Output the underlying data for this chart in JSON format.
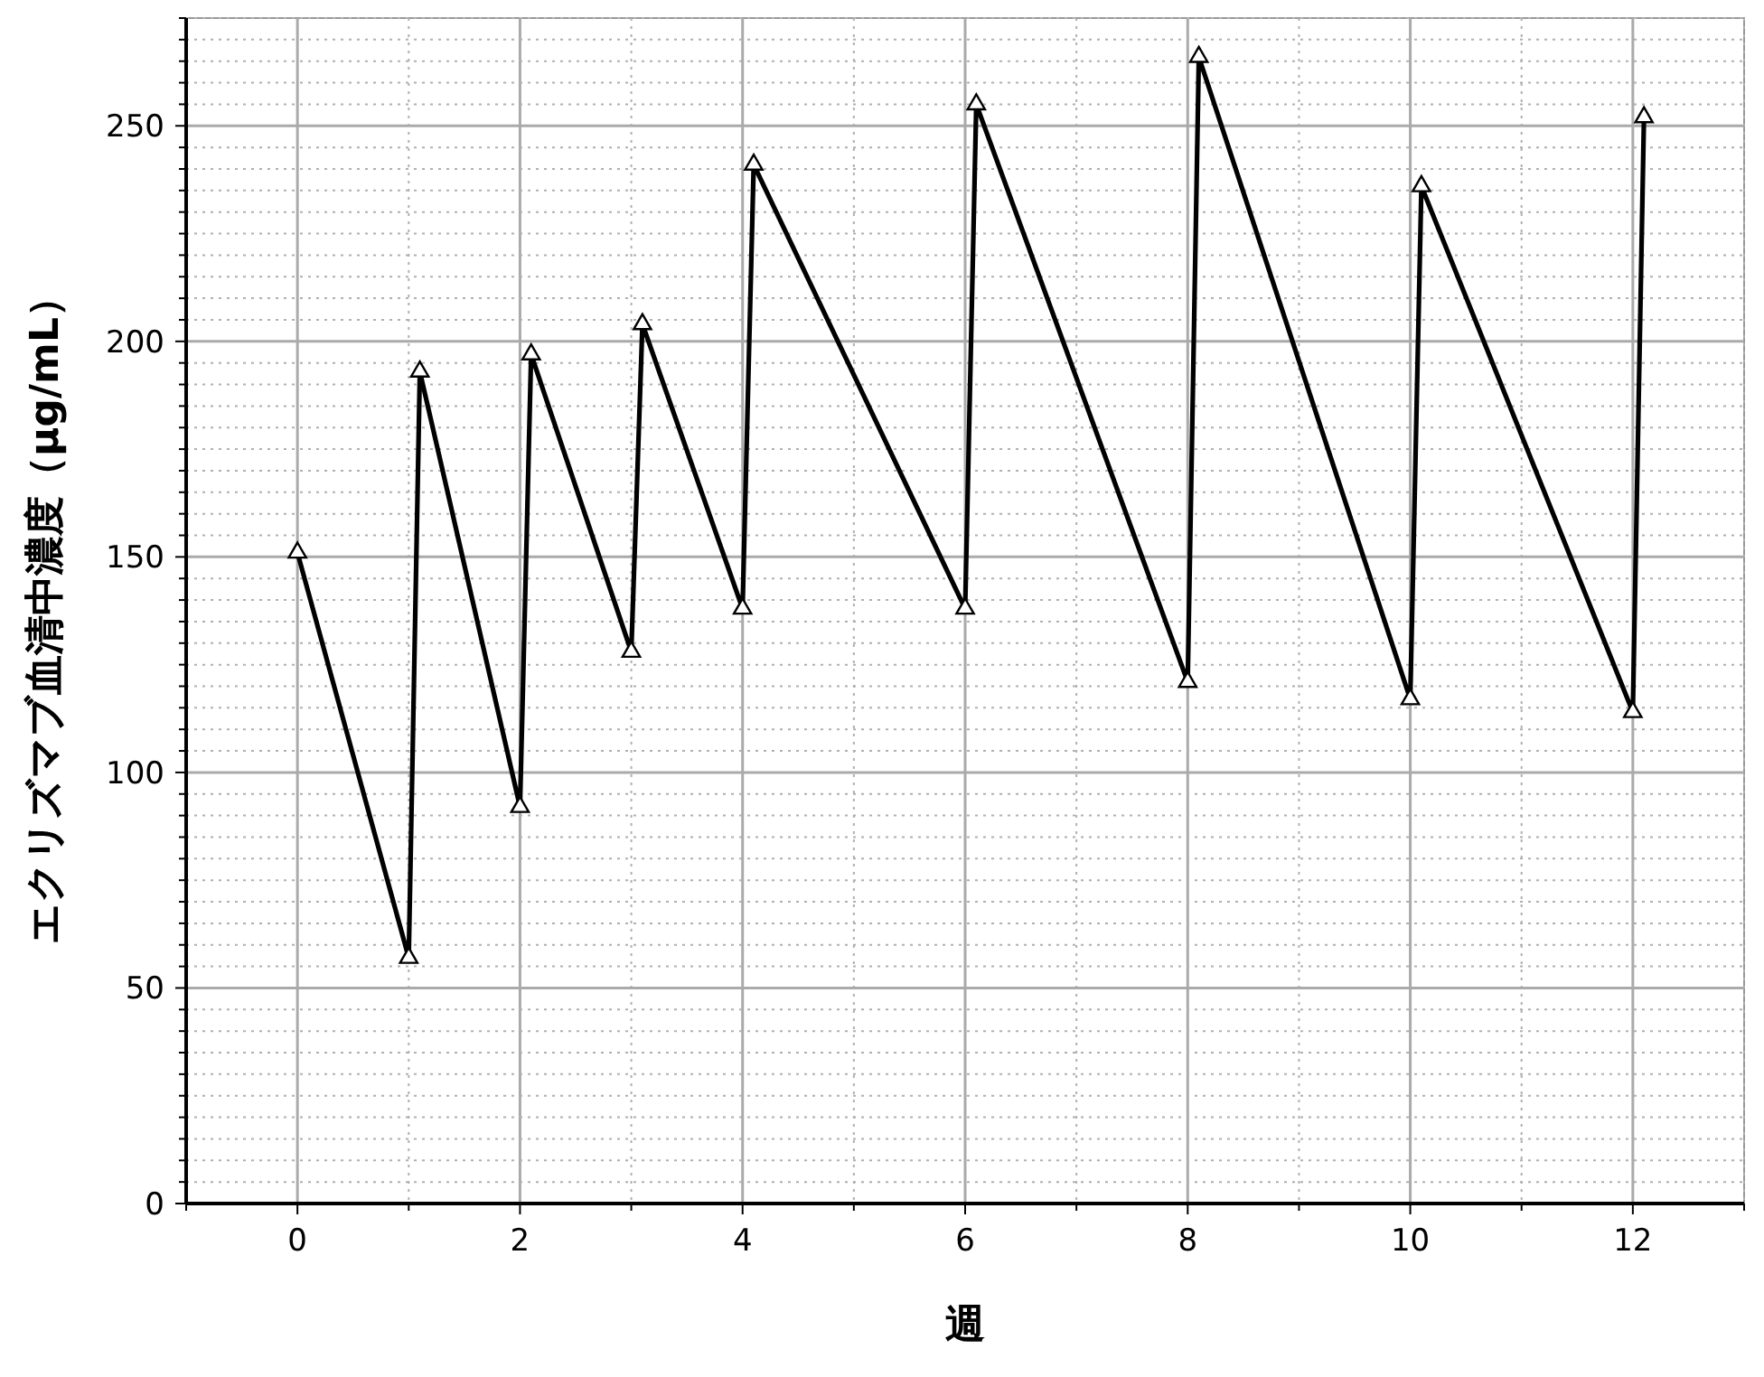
{
  "chart_data": {
    "type": "line",
    "xlabel": "週",
    "ylabel": "エクリズマブ血清中濃度（μg/mL）",
    "series": [
      {
        "color": "#000000",
        "x": [
          0,
          1,
          1.1,
          2,
          2.1,
          3,
          3.1,
          4,
          4.1,
          6,
          6.1,
          8,
          8.1,
          10,
          10.1,
          12,
          12.1
        ],
        "values": [
          151,
          57,
          193,
          92,
          197,
          128,
          204,
          138,
          241,
          138,
          255,
          121,
          266,
          117,
          236,
          114,
          252
        ]
      }
    ],
    "marker": "triangle",
    "line_style": "solid",
    "grid": true,
    "xlim": [
      -1,
      13
    ],
    "ylim": [
      0,
      275
    ],
    "xticks": [
      {
        "value": -1,
        "label": null
      },
      0,
      {
        "value": 1,
        "label": null
      },
      2,
      {
        "value": 3,
        "label": null
      },
      4,
      {
        "value": 5,
        "label": null
      },
      6,
      {
        "value": 7,
        "label": null
      },
      8,
      {
        "value": 9,
        "label": null
      },
      10,
      {
        "value": 11,
        "label": null
      },
      12,
      {
        "value": 13,
        "label": null
      }
    ],
    "yticks": [
      0,
      {
        "value": 5,
        "label": null
      },
      {
        "value": 10,
        "label": null
      },
      {
        "value": 15,
        "label": null
      },
      {
        "value": 20,
        "label": null
      },
      {
        "value": 25,
        "label": null
      },
      {
        "value": 30,
        "label": null
      },
      {
        "value": 35,
        "label": null
      },
      {
        "value": 40,
        "label": null
      },
      {
        "value": 45,
        "label": null
      },
      50,
      {
        "value": 55,
        "label": null
      },
      {
        "value": 60,
        "label": null
      },
      {
        "value": 65,
        "label": null
      },
      {
        "value": 70,
        "label": null
      },
      {
        "value": 75,
        "label": null
      },
      {
        "value": 80,
        "label": null
      },
      {
        "value": 85,
        "label": null
      },
      {
        "value": 90,
        "label": null
      },
      {
        "value": 95,
        "label": null
      },
      100,
      {
        "value": 105,
        "label": null
      },
      {
        "value": 110,
        "label": null
      },
      {
        "value": 115,
        "label": null
      },
      {
        "value": 120,
        "label": null
      },
      {
        "value": 125,
        "label": null
      },
      {
        "value": 130,
        "label": null
      },
      {
        "value": 135,
        "label": null
      },
      {
        "value": 140,
        "label": null
      },
      {
        "value": 145,
        "label": null
      },
      150,
      {
        "value": 155,
        "label": null
      },
      {
        "value": 160,
        "label": null
      },
      {
        "value": 165,
        "label": null
      },
      {
        "value": 170,
        "label": null
      },
      {
        "value": 175,
        "label": null
      },
      {
        "value": 180,
        "label": null
      },
      {
        "value": 185,
        "label": null
      },
      {
        "value": 190,
        "label": null
      },
      {
        "value": 195,
        "label": null
      },
      200,
      {
        "value": 205,
        "label": null
      },
      {
        "value": 210,
        "label": null
      },
      {
        "value": 215,
        "label": null
      },
      {
        "value": 220,
        "label": null
      },
      {
        "value": 225,
        "label": null
      },
      {
        "value": 230,
        "label": null
      },
      {
        "value": 235,
        "label": null
      },
      {
        "value": 240,
        "label": null
      },
      {
        "value": 245,
        "label": null
      },
      250,
      {
        "value": 255,
        "label": null
      },
      {
        "value": 260,
        "label": null
      },
      {
        "value": 265,
        "label": null
      },
      {
        "value": 270,
        "label": null
      },
      {
        "value": 275,
        "label": null
      }
    ]
  }
}
